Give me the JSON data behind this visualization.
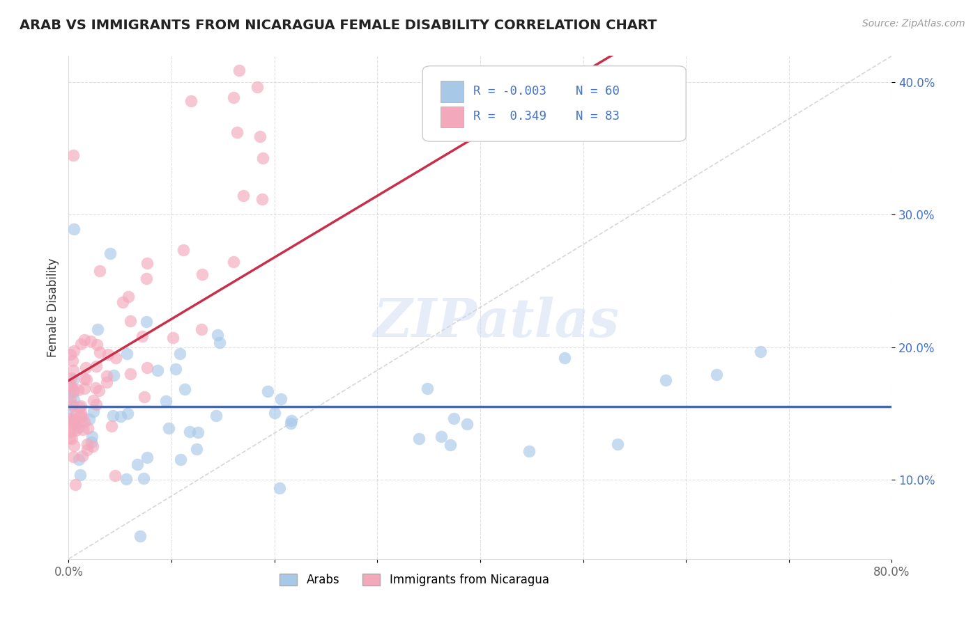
{
  "title": "ARAB VS IMMIGRANTS FROM NICARAGUA FEMALE DISABILITY CORRELATION CHART",
  "source": "Source: ZipAtlas.com",
  "ylabel": "Female Disability",
  "xlim": [
    0,
    0.8
  ],
  "ylim": [
    0.04,
    0.42
  ],
  "xticks": [
    0.0,
    0.1,
    0.2,
    0.3,
    0.4,
    0.5,
    0.6,
    0.7,
    0.8
  ],
  "xticklabels": [
    "0.0%",
    "",
    "",
    "",
    "",
    "",
    "",
    "",
    "80.0%"
  ],
  "yticks": [
    0.1,
    0.2,
    0.3,
    0.4
  ],
  "yticklabels": [
    "10.0%",
    "20.0%",
    "30.0%",
    "40.0%"
  ],
  "arab_color": "#a8c8e8",
  "nicaragua_color": "#f4a8bc",
  "arab_line_color": "#3a6abf",
  "nicaragua_line_color": "#c8304a",
  "R_arab": -0.003,
  "N_arab": 60,
  "R_nicaragua": 0.349,
  "N_nicaragua": 83,
  "watermark": "ZIPatlas",
  "background_color": "#ffffff",
  "grid_color": "#cccccc",
  "diag_line_color": "#cccccc"
}
